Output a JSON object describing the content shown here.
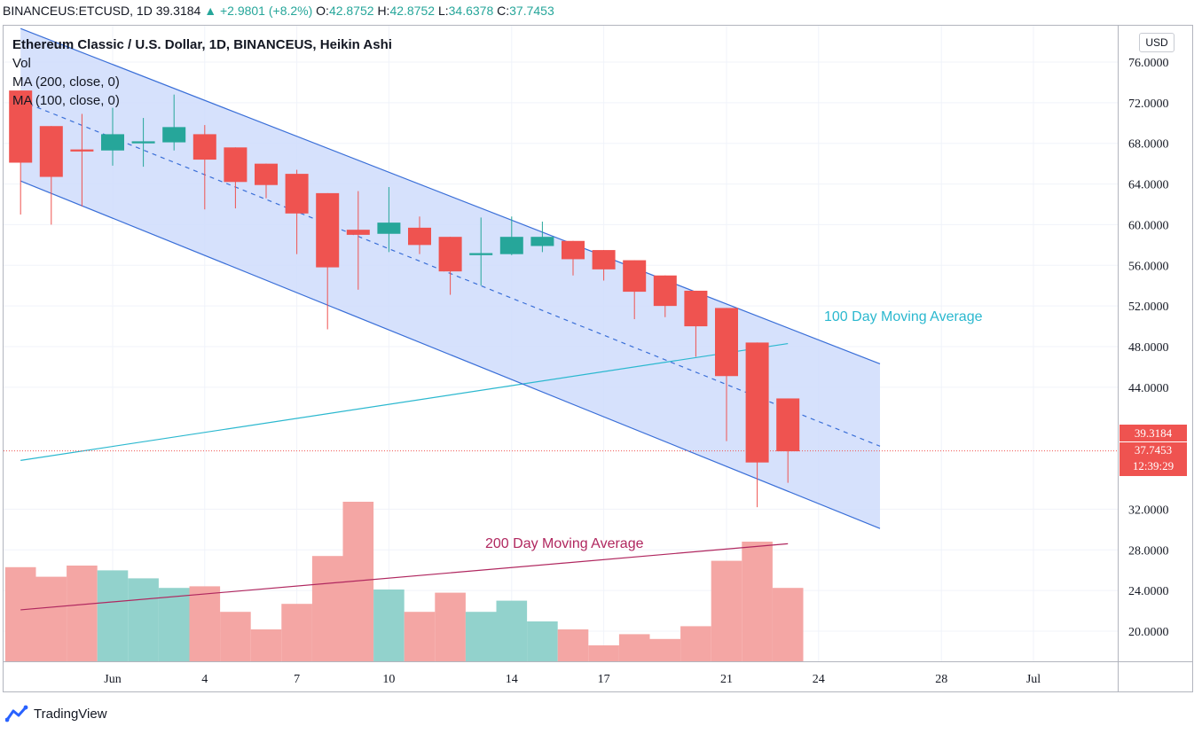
{
  "header": {
    "symbol": "BINANCEUS:ETCUSD",
    "interval": "1D",
    "last": "39.3184",
    "change": "+2.9801 (+8.2%)",
    "o_label": "O:",
    "o": "42.8752",
    "h_label": "H:",
    "h": "42.8752",
    "l_label": "L:",
    "l": "34.6378",
    "c_label": "C:",
    "c": "37.7453"
  },
  "legend": {
    "title": "Ethereum Classic / U.S. Dollar, 1D, BINANCEUS, Heikin Ashi",
    "vol": "Vol",
    "ma200": "MA (200, close, 0)",
    "ma100": "MA (100, close, 0)"
  },
  "currency_button": "USD",
  "annotations": {
    "ma100": "100 Day Moving Average",
    "ma200": "200 Day Moving Average"
  },
  "price_tags": {
    "last": "39.3184",
    "close": "37.7453",
    "countdown": "12:39:29"
  },
  "brand": "TradingView",
  "colors": {
    "up": "#26a69a",
    "down": "#ef5350",
    "vol_up": "#92d2cc",
    "vol_down": "#f4a6a4",
    "channel_fill": "#cfdcfb",
    "channel_line": "#3a6fd8",
    "ma100": "#2bb8cf",
    "ma200": "#b0275f"
  },
  "chart_data": {
    "type": "candlestick",
    "title": "Ethereum Classic / U.S. Dollar, 1D, BINANCEUS, Heikin Ashi",
    "y_axis": {
      "ticks": [
        "76.0000",
        "72.0000",
        "68.0000",
        "64.0000",
        "60.0000",
        "56.0000",
        "52.0000",
        "48.0000",
        "44.0000",
        "32.0000",
        "28.0000",
        "24.0000",
        "20.0000"
      ],
      "range": [
        16.9,
        79.2
      ]
    },
    "x_axis": {
      "labels": [
        {
          "text": "Jun",
          "day": 1
        },
        {
          "text": "4",
          "day": 4
        },
        {
          "text": "7",
          "day": 7
        },
        {
          "text": "10",
          "day": 10
        },
        {
          "text": "14",
          "day": 14
        },
        {
          "text": "17",
          "day": 17
        },
        {
          "text": "21",
          "day": 21
        },
        {
          "text": "24",
          "day": 24
        },
        {
          "text": "28",
          "day": 28
        },
        {
          "text": "Jul",
          "day": 31
        }
      ]
    },
    "candles": [
      {
        "day": -2,
        "o": 73.2,
        "h": 73.2,
        "l": 61.0,
        "c": 66.1
      },
      {
        "day": -1,
        "o": 69.7,
        "h": 69.7,
        "l": 60.0,
        "c": 64.7
      },
      {
        "day": 0,
        "o": 67.4,
        "h": 70.9,
        "l": 61.8,
        "c": 67.2
      },
      {
        "day": 1,
        "o": 67.3,
        "h": 71.5,
        "l": 65.8,
        "c": 68.9
      },
      {
        "day": 2,
        "o": 68.0,
        "h": 70.5,
        "l": 65.7,
        "c": 68.2
      },
      {
        "day": 3,
        "o": 68.1,
        "h": 72.8,
        "l": 67.3,
        "c": 69.6
      },
      {
        "day": 4,
        "o": 68.9,
        "h": 69.8,
        "l": 61.5,
        "c": 66.4
      },
      {
        "day": 5,
        "o": 67.6,
        "h": 67.6,
        "l": 61.6,
        "c": 64.2
      },
      {
        "day": 6,
        "o": 66.0,
        "h": 66.0,
        "l": 62.6,
        "c": 63.9
      },
      {
        "day": 7,
        "o": 65.0,
        "h": 65.4,
        "l": 57.1,
        "c": 61.1
      },
      {
        "day": 8,
        "o": 63.1,
        "h": 63.1,
        "l": 49.7,
        "c": 55.8
      },
      {
        "day": 9,
        "o": 59.5,
        "h": 63.3,
        "l": 53.6,
        "c": 59.0
      },
      {
        "day": 10,
        "o": 59.1,
        "h": 63.7,
        "l": 57.3,
        "c": 60.2
      },
      {
        "day": 11,
        "o": 59.7,
        "h": 60.8,
        "l": 57.1,
        "c": 58.0
      },
      {
        "day": 12,
        "o": 58.8,
        "h": 58.8,
        "l": 53.1,
        "c": 55.4
      },
      {
        "day": 13,
        "o": 57.0,
        "h": 60.7,
        "l": 54.0,
        "c": 57.2
      },
      {
        "day": 14,
        "o": 57.1,
        "h": 60.8,
        "l": 57.0,
        "c": 58.8
      },
      {
        "day": 15,
        "o": 57.9,
        "h": 60.3,
        "l": 57.3,
        "c": 58.8
      },
      {
        "day": 16,
        "o": 58.4,
        "h": 58.4,
        "l": 55.0,
        "c": 56.6
      },
      {
        "day": 17,
        "o": 57.5,
        "h": 57.5,
        "l": 54.5,
        "c": 55.6
      },
      {
        "day": 18,
        "o": 56.5,
        "h": 56.5,
        "l": 50.7,
        "c": 53.4
      },
      {
        "day": 19,
        "o": 55.0,
        "h": 55.0,
        "l": 50.9,
        "c": 52.0
      },
      {
        "day": 20,
        "o": 53.5,
        "h": 53.5,
        "l": 47.0,
        "c": 50.0
      },
      {
        "day": 21,
        "o": 51.8,
        "h": 51.8,
        "l": 38.7,
        "c": 45.1
      },
      {
        "day": 22,
        "o": 48.4,
        "h": 48.4,
        "l": 32.2,
        "c": 36.6
      },
      {
        "day": 23,
        "o": 42.9,
        "h": 42.9,
        "l": 34.6,
        "c": 37.7
      }
    ],
    "volume": {
      "display_note": "relative bar heights on a 0-100 scale",
      "bars": [
        {
          "day": -2,
          "v": 59,
          "dir": "down"
        },
        {
          "day": -1,
          "v": 53,
          "dir": "down"
        },
        {
          "day": 0,
          "v": 60,
          "dir": "down"
        },
        {
          "day": 1,
          "v": 57,
          "dir": "up"
        },
        {
          "day": 2,
          "v": 52,
          "dir": "up"
        },
        {
          "day": 3,
          "v": 46,
          "dir": "up"
        },
        {
          "day": 4,
          "v": 47,
          "dir": "down"
        },
        {
          "day": 5,
          "v": 31,
          "dir": "down"
        },
        {
          "day": 6,
          "v": 20,
          "dir": "down"
        },
        {
          "day": 7,
          "v": 36,
          "dir": "down"
        },
        {
          "day": 8,
          "v": 66,
          "dir": "down"
        },
        {
          "day": 9,
          "v": 100,
          "dir": "down"
        },
        {
          "day": 10,
          "v": 45,
          "dir": "up"
        },
        {
          "day": 11,
          "v": 31,
          "dir": "down"
        },
        {
          "day": 12,
          "v": 43,
          "dir": "down"
        },
        {
          "day": 13,
          "v": 31,
          "dir": "up"
        },
        {
          "day": 14,
          "v": 38,
          "dir": "up"
        },
        {
          "day": 15,
          "v": 25,
          "dir": "up"
        },
        {
          "day": 16,
          "v": 20,
          "dir": "down"
        },
        {
          "day": 17,
          "v": 10,
          "dir": "down"
        },
        {
          "day": 18,
          "v": 17,
          "dir": "down"
        },
        {
          "day": 19,
          "v": 14,
          "dir": "down"
        },
        {
          "day": 20,
          "v": 22,
          "dir": "down"
        },
        {
          "day": 21,
          "v": 63,
          "dir": "down"
        },
        {
          "day": 22,
          "v": 75,
          "dir": "down"
        },
        {
          "day": 23,
          "v": 46,
          "dir": "down"
        }
      ]
    },
    "channel": {
      "upper": [
        {
          "day": -2,
          "price": 79.3
        },
        {
          "day": 26,
          "price": 46.3
        }
      ],
      "middle": [
        {
          "day": -2,
          "price": 72.2
        },
        {
          "day": 26,
          "price": 38.2
        }
      ],
      "lower": [
        {
          "day": -2,
          "price": 64.3
        },
        {
          "day": 26,
          "price": 30.1
        }
      ]
    },
    "ma100": [
      {
        "day": -2,
        "price": 36.8
      },
      {
        "day": 23,
        "price": 48.3
      }
    ],
    "ma200": [
      {
        "day": -2,
        "price": 22.1
      },
      {
        "day": 23,
        "price": 28.6
      }
    ],
    "last_price": 39.3184,
    "close_price": 37.7453
  }
}
